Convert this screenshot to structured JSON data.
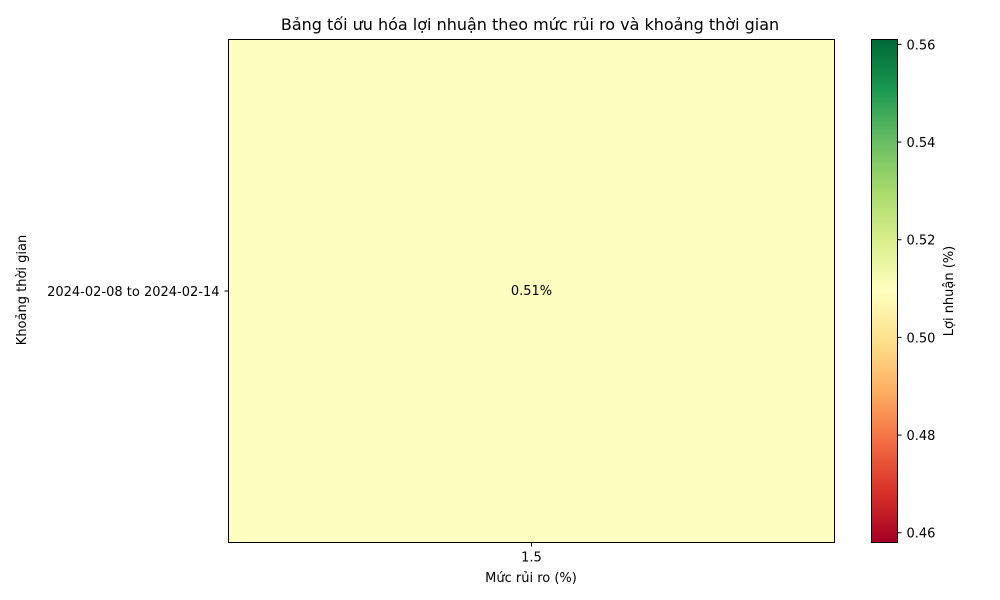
{
  "chart_data": {
    "type": "heatmap",
    "title": "Bảng tối ưu hóa lợi nhuận theo mức rủi ro và khoảng thời gian",
    "xlabel": "Mức rủi ro (%)",
    "ylabel": "Khoảng thời gian",
    "x_categories": [
      "1.5"
    ],
    "y_categories": [
      "2024-02-08 to 2024-02-14"
    ],
    "values": [
      [
        0.51
      ]
    ],
    "cell_labels": [
      [
        "0.51%"
      ]
    ],
    "colormap": "RdYlGn",
    "colorbar": {
      "label": "Lợi nhuận (%)",
      "min": 0.458,
      "max": 0.561,
      "ticks": [
        "0.46",
        "0.48",
        "0.50",
        "0.52",
        "0.54",
        "0.56"
      ]
    },
    "colors": {
      "cell": "#fdfebf",
      "axis": "#000000"
    }
  }
}
